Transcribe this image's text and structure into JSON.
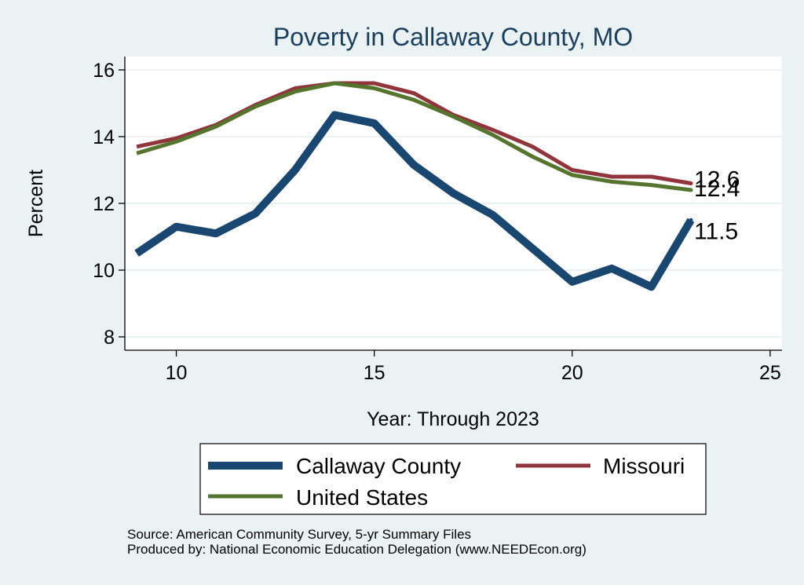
{
  "chart_data": {
    "type": "line",
    "title": "Poverty in Callaway County, MO",
    "xlabel": "Year: Through 2023",
    "ylabel": "Percent",
    "xlim": [
      8.7,
      25.3
    ],
    "ylim": [
      7.6,
      16.4
    ],
    "xticks": [
      10,
      15,
      20,
      25
    ],
    "yticks": [
      8,
      10,
      12,
      14,
      16
    ],
    "grid": true,
    "legend_position": "bottom",
    "series": [
      {
        "name": "Callaway County",
        "color": "#1a476f",
        "line_weight": "thick",
        "x": [
          9,
          10,
          11,
          12,
          13,
          14,
          15,
          16,
          17,
          18,
          19,
          20,
          21,
          22,
          23
        ],
        "values": [
          10.5,
          11.3,
          11.1,
          11.7,
          13.0,
          14.65,
          14.4,
          13.15,
          12.3,
          11.65,
          10.65,
          9.65,
          10.05,
          9.5,
          11.5
        ],
        "end_label": "11.5"
      },
      {
        "name": "Missouri",
        "color": "#90353b",
        "line_weight": "medium",
        "x": [
          9,
          10,
          11,
          12,
          13,
          14,
          15,
          16,
          17,
          18,
          19,
          20,
          21,
          22,
          23
        ],
        "values": [
          13.7,
          13.95,
          14.35,
          14.95,
          15.45,
          15.6,
          15.6,
          15.3,
          14.65,
          14.2,
          13.7,
          13.0,
          12.8,
          12.8,
          12.6
        ],
        "end_label": "12.6"
      },
      {
        "name": "United States",
        "color": "#55752f",
        "line_weight": "medium",
        "x": [
          9,
          10,
          11,
          12,
          13,
          14,
          15,
          16,
          17,
          18,
          19,
          20,
          21,
          22,
          23
        ],
        "values": [
          13.5,
          13.85,
          14.3,
          14.9,
          15.35,
          15.6,
          15.45,
          15.1,
          14.6,
          14.05,
          13.4,
          12.85,
          12.65,
          12.55,
          12.4
        ],
        "end_label": "12.4"
      }
    ]
  },
  "legend_order": [
    "Callaway County",
    "Missouri",
    "United States"
  ],
  "colors": {
    "background": "#eaf2f3",
    "plot_background": "#ffffff",
    "grid": "#eaf2f3",
    "title": "#1a3e5c"
  },
  "source": {
    "line1": "Source: American Community Survey, 5-yr Summary Files",
    "line2": "Produced by: National Economic Education Delegation (www.NEEDEcon.org)"
  }
}
